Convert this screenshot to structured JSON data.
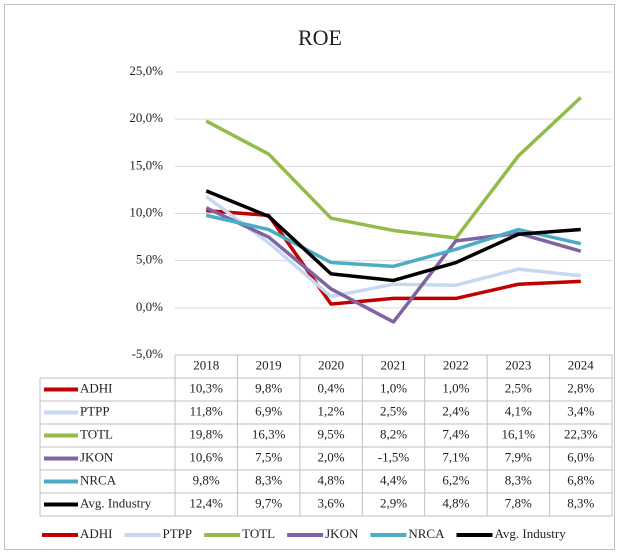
{
  "chart_data": {
    "type": "line",
    "title": "ROE",
    "categories": [
      "2018",
      "2019",
      "2020",
      "2021",
      "2022",
      "2023",
      "2024"
    ],
    "series": [
      {
        "name": "ADHI",
        "color": "#c00000",
        "values": [
          10.3,
          9.8,
          0.4,
          1.0,
          1.0,
          2.5,
          2.8
        ],
        "value_labels": [
          "10,3%",
          "9,8%",
          "0,4%",
          "1,0%",
          "1,0%",
          "2,5%",
          "2,8%"
        ]
      },
      {
        "name": "PTPP",
        "color": "#c6d9f1",
        "values": [
          11.8,
          6.9,
          1.2,
          2.5,
          2.4,
          4.1,
          3.4
        ],
        "value_labels": [
          "11,8%",
          "6,9%",
          "1,2%",
          "2,5%",
          "2,4%",
          "4,1%",
          "3,4%"
        ]
      },
      {
        "name": "TOTL",
        "color": "#92bb4a",
        "values": [
          19.8,
          16.3,
          9.5,
          8.2,
          7.4,
          16.1,
          22.3
        ],
        "value_labels": [
          "19,8%",
          "16,3%",
          "9,5%",
          "8,2%",
          "7,4%",
          "16,1%",
          "22,3%"
        ]
      },
      {
        "name": "JKON",
        "color": "#8064a2",
        "values": [
          10.6,
          7.5,
          2.0,
          -1.5,
          7.1,
          7.9,
          6.0
        ],
        "value_labels": [
          "10,6%",
          "7,5%",
          "2,0%",
          "-1,5%",
          "7,1%",
          "7,9%",
          "6,0%"
        ]
      },
      {
        "name": "NRCA",
        "color": "#4bacc6",
        "values": [
          9.8,
          8.3,
          4.8,
          4.4,
          6.2,
          8.3,
          6.8
        ],
        "value_labels": [
          "9,8%",
          "8,3%",
          "4,8%",
          "4,4%",
          "6,2%",
          "8,3%",
          "6,8%"
        ]
      },
      {
        "name": "Avg. Industry",
        "color": "#000000",
        "values": [
          12.4,
          9.7,
          3.6,
          2.9,
          4.8,
          7.8,
          8.3
        ],
        "value_labels": [
          "12,4%",
          "9,7%",
          "3,6%",
          "2,9%",
          "4,8%",
          "7,8%",
          "8,3%"
        ]
      }
    ],
    "ylim": [
      -5,
      25
    ],
    "yticks": [
      {
        "value": -5,
        "label": "-5,0%"
      },
      {
        "value": 0,
        "label": "0,0%"
      },
      {
        "value": 5,
        "label": "5,0%"
      },
      {
        "value": 10,
        "label": "10,0%"
      },
      {
        "value": 15,
        "label": "15,0%"
      },
      {
        "value": 20,
        "label": "20,0%"
      },
      {
        "value": 25,
        "label": "25,0%"
      }
    ],
    "grid": true,
    "legend": "bottom"
  }
}
